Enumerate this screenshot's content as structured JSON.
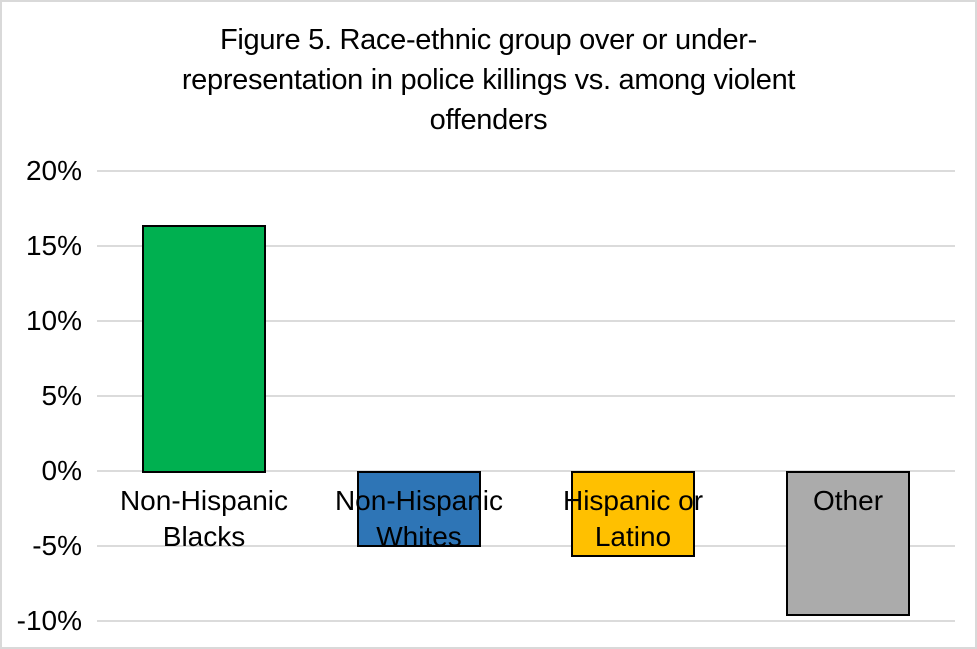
{
  "chart_data": {
    "type": "bar",
    "title": "Figure 5. Race-ethnic group over or under-representation in police killings vs. among violent offenders",
    "title_lines": [
      "Figure 5. Race-ethnic group over or under-",
      "representation in police killings vs. among violent",
      "offenders"
    ],
    "categories": [
      "Non-Hispanic Blacks",
      "Non-Hispanic Whites",
      "Hispanic or Latino",
      "Other"
    ],
    "category_lines": [
      [
        "Non-Hispanic",
        "Blacks"
      ],
      [
        "Non-Hispanic",
        "Whites"
      ],
      [
        "Hispanic or",
        "Latino"
      ],
      [
        "Other"
      ]
    ],
    "values": [
      16.4,
      -4.9,
      -5.6,
      -9.5
    ],
    "unit": "%",
    "series_colors": [
      "#00B050",
      "#2E75B6",
      "#FFC000",
      "#ABABAB"
    ],
    "bar_border_color": "#000000",
    "yticks": [
      {
        "label": "20%",
        "value": 20
      },
      {
        "label": "15%",
        "value": 15
      },
      {
        "label": "10%",
        "value": 10
      },
      {
        "label": "5%",
        "value": 5
      },
      {
        "label": "0%",
        "value": 0
      },
      {
        "label": "-5%",
        "value": -5
      },
      {
        "label": "-10%",
        "value": -10
      }
    ],
    "ylim": [
      -10,
      20
    ],
    "xlabel": "",
    "ylabel": "",
    "grid": true,
    "gridline_color": "#dbdbdb",
    "legend_position": "none"
  }
}
